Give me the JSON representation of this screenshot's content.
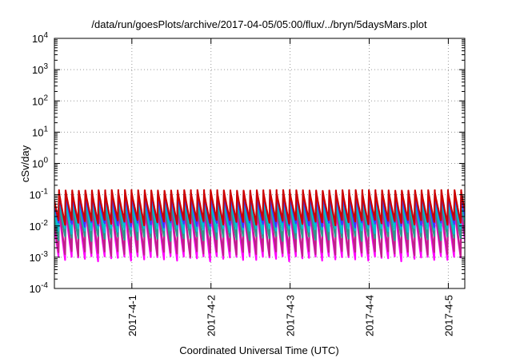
{
  "chart_data": {
    "type": "line",
    "title": "/data/run/goesPlots/archive/2017-04-05/05:00/flux/../bryn/5daysMars.plot",
    "xlabel": "Coordinated Universal Time (UTC)",
    "ylabel": "cSv/day",
    "y_scale": "log",
    "ylim": [
      0.0001,
      10000
    ],
    "y_ticks": [
      {
        "value": 0.0001,
        "base": "10",
        "exp": "-4"
      },
      {
        "value": 0.001,
        "base": "10",
        "exp": "-3"
      },
      {
        "value": 0.01,
        "base": "10",
        "exp": "-2"
      },
      {
        "value": 0.1,
        "base": "10",
        "exp": "-1"
      },
      {
        "value": 1,
        "base": "10",
        "exp": "0"
      },
      {
        "value": 10,
        "base": "10",
        "exp": "1"
      },
      {
        "value": 100,
        "base": "10",
        "exp": "2"
      },
      {
        "value": 1000,
        "base": "10",
        "exp": "3"
      },
      {
        "value": 10000,
        "base": "10",
        "exp": "4"
      }
    ],
    "xlim": [
      "2017-03-31T00:30:00",
      "2017-04-05T05:00:00"
    ],
    "x_ticks": [
      {
        "value": "2017-04-01T00:00:00",
        "label": "2017-4-1"
      },
      {
        "value": "2017-04-02T00:00:00",
        "label": "2017-4-2"
      },
      {
        "value": "2017-04-03T00:00:00",
        "label": "2017-4-3"
      },
      {
        "value": "2017-04-04T00:00:00",
        "label": "2017-4-4"
      },
      {
        "value": "2017-04-05T00:00:00",
        "label": "2017-4-5"
      }
    ],
    "grid": true,
    "cycle_hours": 2.0,
    "series": [
      {
        "color": "#ff00ff",
        "peak": 0.04,
        "trough": 0.0009
      },
      {
        "color": "#c0208a",
        "peak": 0.055,
        "trough": 0.0013
      },
      {
        "color": "#2a9a8a",
        "peak": 0.06,
        "trough": 0.004
      },
      {
        "color": "#00c0d0",
        "peak": 0.08,
        "trough": 0.007
      },
      {
        "color": "#3a3aff",
        "peak": 0.1,
        "trough": 0.011
      },
      {
        "color": "#cc0000",
        "peak": 0.14,
        "trough": 0.013
      }
    ]
  }
}
